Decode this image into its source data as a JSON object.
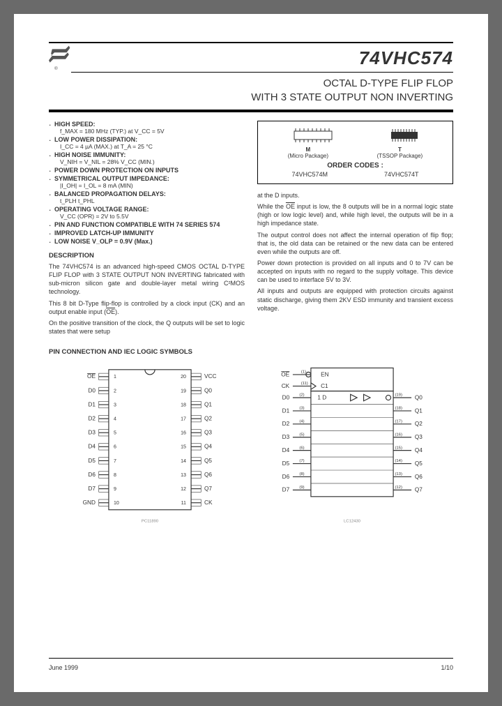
{
  "part_number": "74VHC574",
  "title_line1": "OCTAL D-TYPE FLIP FLOP",
  "title_line2": "WITH 3 STATE OUTPUT NON INVERTING",
  "features": [
    {
      "head": "HIGH SPEED:",
      "sub": "f_MAX = 180 MHz (TYP.) at V_CC = 5V"
    },
    {
      "head": "LOW POWER DISSIPATION:",
      "sub": "I_CC = 4 µA (MAX.) at T_A = 25 °C"
    },
    {
      "head": "HIGH NOISE IMMUNITY:",
      "sub": "V_NIH = V_NIL = 28% V_CC (MIN.)"
    },
    {
      "head": "POWER DOWN PROTECTION ON  INPUTS",
      "sub": ""
    },
    {
      "head": "SYMMETRICAL OUTPUT IMPEDANCE:",
      "sub": "|I_OH| = I_OL = 8 mA (MIN)"
    },
    {
      "head": "BALANCED PROPAGATION DELAYS:",
      "sub": "t_PLH    t_PHL"
    },
    {
      "head": "OPERATING VOLTAGE RANGE:",
      "sub": "V_CC (OPR) = 2V to 5.5V"
    },
    {
      "head": "PIN AND FUNCTION COMPATIBLE WITH 74 SERIES 574",
      "sub": ""
    },
    {
      "head": "IMPROVED LATCH-UP IMMUNITY",
      "sub": ""
    },
    {
      "head": "LOW NOISE V_OLP = 0.9V (Max.)",
      "sub": ""
    }
  ],
  "desc_head": "DESCRIPTION",
  "desc_p1": "The 74VHC574 is an advanced high-speed CMOS OCTAL D-TYPE FLIP FLOP with 3 STATE OUTPUT NON INVERTING fabricated with sub-micron silicon gate and double-layer metal wiring C²MOS technology.",
  "desc_p2": "This 8 bit D-Type flip-flop is controlled by a clock input (CK) and an output enable input (OE).",
  "desc_p3": "On the positive transition of the clock, the Q outputs will be set to logic states that were setup",
  "col2_p1": "at the D inputs.",
  "col2_p2": "While the OE input is low, the 8 outputs will be in a normal logic state (high or low logic level) and, while high level, the outputs will be in a high impedance state.",
  "col2_p3": "The output control does not affect the internal operation of flip flop; that is, the old data can be retained or the new data can be entered even while the outputs are off.",
  "col2_p4": "Power down protection is provided on all inputs and 0 to 7V can be accepted on inputs with no regard to the supply voltage.  This device can be used to interface 5V to 3V.",
  "col2_p5": "All inputs and outputs are equipped with protection circuits against static discharge, giving them 2KV ESD immunity and transient excess voltage.",
  "pkg": {
    "m_label": "M",
    "m_desc": "(Micro Package)",
    "t_label": "T",
    "t_desc": "(TSSOP Package)",
    "order_head": "ORDER CODES :",
    "code_m": "74VHC574M",
    "code_t": "74VHC574T"
  },
  "pin_title": "PIN CONNECTION AND IEC LOGIC SYMBOLS",
  "pin_diagram": {
    "left_pins": [
      {
        "n": "1",
        "lbl": "OE"
      },
      {
        "n": "2",
        "lbl": "D0"
      },
      {
        "n": "3",
        "lbl": "D1"
      },
      {
        "n": "4",
        "lbl": "D2"
      },
      {
        "n": "5",
        "lbl": "D3"
      },
      {
        "n": "6",
        "lbl": "D4"
      },
      {
        "n": "7",
        "lbl": "D5"
      },
      {
        "n": "8",
        "lbl": "D6"
      },
      {
        "n": "9",
        "lbl": "D7"
      },
      {
        "n": "10",
        "lbl": "GND"
      }
    ],
    "right_pins": [
      {
        "n": "20",
        "lbl": "VCC"
      },
      {
        "n": "19",
        "lbl": "Q0"
      },
      {
        "n": "18",
        "lbl": "Q1"
      },
      {
        "n": "17",
        "lbl": "Q2"
      },
      {
        "n": "16",
        "lbl": "Q3"
      },
      {
        "n": "15",
        "lbl": "Q4"
      },
      {
        "n": "14",
        "lbl": "Q5"
      },
      {
        "n": "13",
        "lbl": "Q6"
      },
      {
        "n": "12",
        "lbl": "Q7"
      },
      {
        "n": "11",
        "lbl": "CK"
      }
    ],
    "ref": "PC11890"
  },
  "iec_diagram": {
    "top": [
      {
        "lbl": "OE",
        "n": "1",
        "sym": "EN"
      },
      {
        "lbl": "CK",
        "n": "11",
        "sym": "C1"
      }
    ],
    "rows": [
      {
        "l": "D0",
        "ln": "2",
        "rn": "19",
        "r": "Q0"
      },
      {
        "l": "D1",
        "ln": "3",
        "rn": "18",
        "r": "Q1"
      },
      {
        "l": "D2",
        "ln": "4",
        "rn": "17",
        "r": "Q2"
      },
      {
        "l": "D3",
        "ln": "5",
        "rn": "16",
        "r": "Q3"
      },
      {
        "l": "D4",
        "ln": "6",
        "rn": "15",
        "r": "Q4"
      },
      {
        "l": "D5",
        "ln": "7",
        "rn": "14",
        "r": "Q5"
      },
      {
        "l": "D6",
        "ln": "8",
        "rn": "13",
        "r": "Q6"
      },
      {
        "l": "D7",
        "ln": "9",
        "rn": "12",
        "r": "Q7"
      }
    ],
    "inner": "1 D",
    "ref": "LC12430"
  },
  "footer": {
    "date": "June 1999",
    "page": "1/10"
  },
  "colors": {
    "text": "#333333",
    "line": "#000000",
    "bg": "#ffffff"
  }
}
